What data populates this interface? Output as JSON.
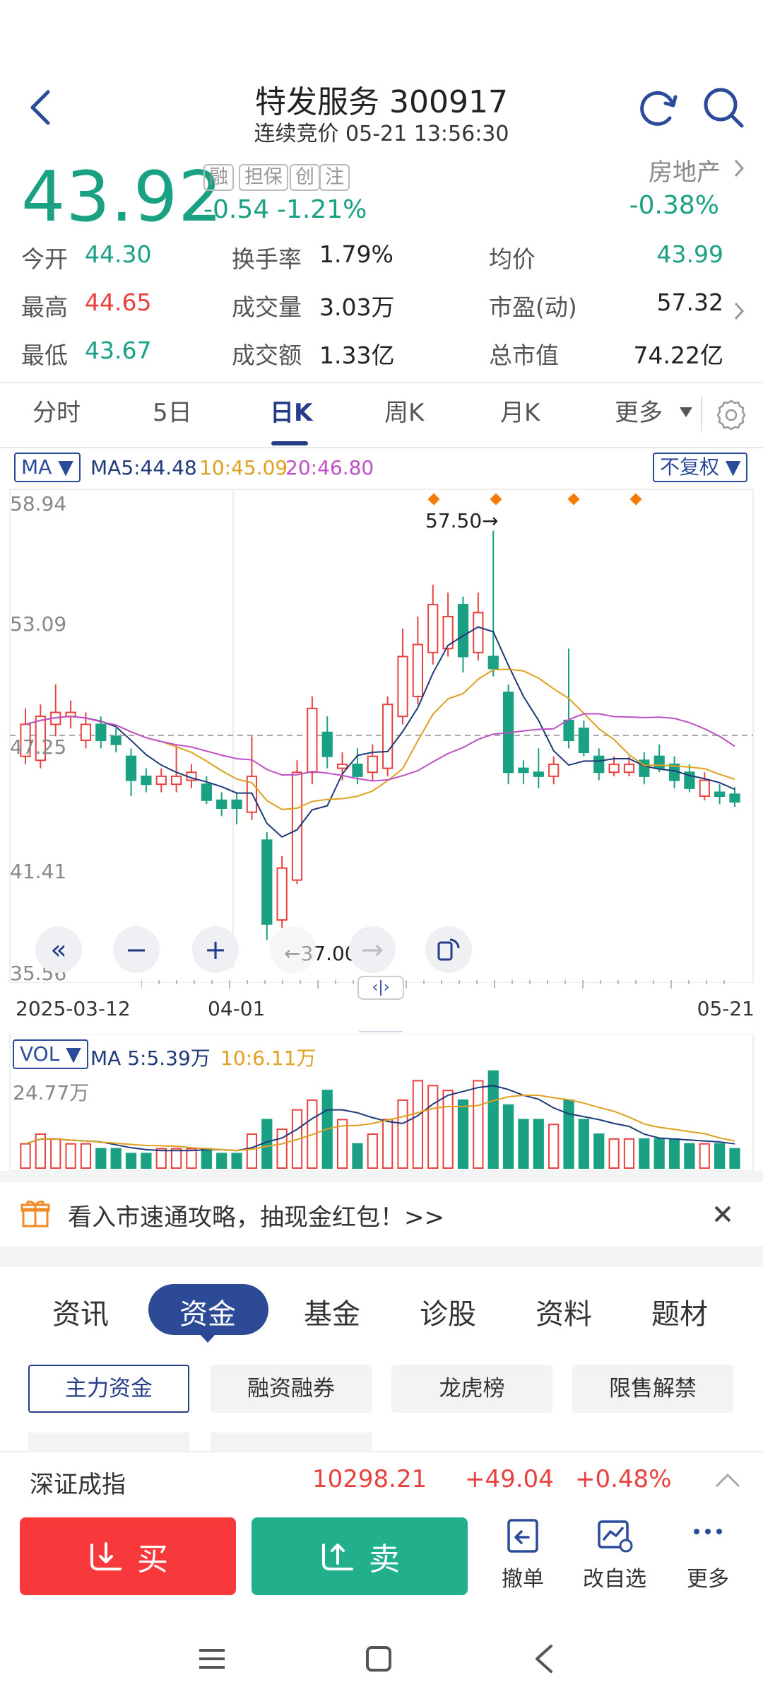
{
  "header": {
    "title": "特发服务 300917",
    "subtitle": "连续竞价 05-21 13:56:30"
  },
  "quote": {
    "price": "43.92",
    "change": "-0.54",
    "change_pct": "-1.21%",
    "tags": [
      "融",
      "担保",
      "创",
      "注"
    ],
    "sector": "房地产",
    "sector_change": "-0.38%"
  },
  "stats": {
    "open_label": "今开",
    "open": "44.30",
    "turnover_label": "换手率",
    "turnover": "1.79%",
    "avg_label": "均价",
    "avg": "43.99",
    "high_label": "最高",
    "high": "44.65",
    "volume_label": "成交量",
    "volume": "3.03万",
    "pe_label": "市盈(动)",
    "pe": "57.32",
    "low_label": "最低",
    "low": "43.67",
    "amount_label": "成交额",
    "amount": "1.33亿",
    "mcap_label": "总市值",
    "mcap": "74.22亿"
  },
  "ktabs": [
    "分时",
    "5日",
    "日K",
    "周K",
    "月K",
    "更多"
  ],
  "chart": {
    "ma_selector": "MA",
    "ma5": "MA5:44.48",
    "ma10": "10:45.09",
    "ma20": "20:46.80",
    "adjust": "不复权",
    "y_top": "58.94",
    "y_mid": "53.09",
    "y_cur": "47.25",
    "y_low": "41.41",
    "y_bottom": "35.56",
    "max_label": "57.50→",
    "min_label": "←37.00",
    "date_start": "2025-03-12",
    "date_mid": "04-01",
    "date_end": "05-21",
    "vol_selector": "VOL",
    "vol_ma5": "MA 5:5.39万",
    "vol_ma10": "10:6.11万",
    "vol_max": "24.77万",
    "colors": {
      "up": "#e8423f",
      "down": "#1aa184",
      "ma5": "#1f3a7a",
      "ma10": "#e0a020",
      "ma20": "#c050c8"
    }
  },
  "chart_data": {
    "type": "candlestick",
    "x_start": "2025-03-12",
    "x_end": "2025-05-21",
    "ylim": [
      35.56,
      58.94
    ],
    "candles": [
      {
        "o": 46.2,
        "c": 47.8,
        "h": 48.6,
        "l": 45.8
      },
      {
        "o": 46.0,
        "c": 48.2,
        "h": 48.8,
        "l": 45.6
      },
      {
        "o": 47.8,
        "c": 48.4,
        "h": 49.8,
        "l": 47.2
      },
      {
        "o": 48.2,
        "c": 48.4,
        "h": 49.0,
        "l": 47.6
      },
      {
        "o": 47.0,
        "c": 47.8,
        "h": 48.4,
        "l": 46.6
      },
      {
        "o": 47.8,
        "c": 47.0,
        "h": 48.2,
        "l": 46.6
      },
      {
        "o": 47.2,
        "c": 46.8,
        "h": 47.6,
        "l": 46.4
      },
      {
        "o": 46.2,
        "c": 45.0,
        "h": 46.6,
        "l": 44.2
      },
      {
        "o": 45.2,
        "c": 44.8,
        "h": 45.6,
        "l": 44.4
      },
      {
        "o": 44.8,
        "c": 45.2,
        "h": 45.6,
        "l": 44.4
      },
      {
        "o": 44.8,
        "c": 45.2,
        "h": 46.8,
        "l": 44.4
      },
      {
        "o": 45.0,
        "c": 45.4,
        "h": 45.8,
        "l": 44.6
      },
      {
        "o": 44.8,
        "c": 44.0,
        "h": 45.2,
        "l": 43.8
      },
      {
        "o": 44.0,
        "c": 43.6,
        "h": 44.4,
        "l": 43.2
      },
      {
        "o": 44.0,
        "c": 43.6,
        "h": 44.4,
        "l": 42.8
      },
      {
        "o": 43.4,
        "c": 45.2,
        "h": 47.2,
        "l": 43.0
      },
      {
        "o": 42.0,
        "c": 37.8,
        "h": 42.4,
        "l": 37.0
      },
      {
        "o": 38.0,
        "c": 40.6,
        "h": 41.2,
        "l": 37.6
      },
      {
        "o": 40.0,
        "c": 45.4,
        "h": 46.0,
        "l": 39.8
      },
      {
        "o": 45.4,
        "c": 48.6,
        "h": 49.2,
        "l": 44.8
      },
      {
        "o": 47.4,
        "c": 46.2,
        "h": 48.2,
        "l": 45.6
      },
      {
        "o": 45.6,
        "c": 45.8,
        "h": 46.4,
        "l": 45.0
      },
      {
        "o": 45.8,
        "c": 45.2,
        "h": 46.6,
        "l": 44.8
      },
      {
        "o": 45.4,
        "c": 46.2,
        "h": 46.8,
        "l": 45.0
      },
      {
        "o": 45.6,
        "c": 48.8,
        "h": 49.2,
        "l": 45.2
      },
      {
        "o": 48.2,
        "c": 51.2,
        "h": 52.6,
        "l": 47.8
      },
      {
        "o": 49.2,
        "c": 51.8,
        "h": 53.2,
        "l": 48.8
      },
      {
        "o": 51.4,
        "c": 53.8,
        "h": 54.8,
        "l": 50.8
      },
      {
        "o": 51.6,
        "c": 53.2,
        "h": 54.4,
        "l": 51.2
      },
      {
        "o": 53.8,
        "c": 51.2,
        "h": 54.2,
        "l": 50.4
      },
      {
        "o": 51.4,
        "c": 53.4,
        "h": 54.4,
        "l": 51.0
      },
      {
        "o": 51.2,
        "c": 50.6,
        "h": 57.5,
        "l": 50.2
      },
      {
        "o": 49.4,
        "c": 45.4,
        "h": 49.8,
        "l": 44.8
      },
      {
        "o": 45.6,
        "c": 45.4,
        "h": 46.0,
        "l": 44.8
      },
      {
        "o": 45.4,
        "c": 45.2,
        "h": 46.6,
        "l": 44.6
      },
      {
        "o": 45.2,
        "c": 45.8,
        "h": 46.2,
        "l": 44.8
      },
      {
        "o": 48.0,
        "c": 47.0,
        "h": 51.6,
        "l": 46.6
      },
      {
        "o": 47.6,
        "c": 46.4,
        "h": 48.0,
        "l": 46.2
      },
      {
        "o": 46.2,
        "c": 45.4,
        "h": 46.6,
        "l": 45.0
      },
      {
        "o": 45.4,
        "c": 45.8,
        "h": 46.2,
        "l": 45.2
      },
      {
        "o": 45.4,
        "c": 45.8,
        "h": 46.2,
        "l": 45.2
      },
      {
        "o": 46.0,
        "c": 45.2,
        "h": 46.4,
        "l": 44.8
      },
      {
        "o": 46.2,
        "c": 45.6,
        "h": 46.8,
        "l": 45.4
      },
      {
        "o": 45.8,
        "c": 45.0,
        "h": 46.2,
        "l": 44.6
      },
      {
        "o": 45.4,
        "c": 44.6,
        "h": 45.8,
        "l": 44.4
      },
      {
        "o": 44.2,
        "c": 45.0,
        "h": 45.4,
        "l": 44.0
      },
      {
        "o": 44.4,
        "c": 44.2,
        "h": 44.8,
        "l": 43.8
      },
      {
        "o": 44.3,
        "c": 43.92,
        "h": 44.65,
        "l": 43.67
      }
    ],
    "volume_ylim": [
      0,
      24.77
    ],
    "volume": [
      5,
      7,
      6,
      5,
      5,
      4,
      4,
      3,
      3,
      4,
      4,
      4,
      4,
      3,
      3,
      7,
      10,
      8,
      12,
      14,
      16,
      10,
      5,
      7,
      10,
      14,
      18,
      17,
      16,
      14,
      18,
      20,
      13,
      10,
      10,
      9,
      14,
      10,
      7,
      6,
      6,
      6,
      6,
      6,
      5,
      5,
      5,
      4
    ]
  },
  "promo": {
    "text": "看入市速通攻略，抽现金红包！>>"
  },
  "info_tabs": [
    "资讯",
    "资金",
    "基金",
    "诊股",
    "资料",
    "题材"
  ],
  "sub_buttons": [
    "主力资金",
    "融资融券",
    "龙虎榜",
    "限售解禁"
  ],
  "index_bar": {
    "name": "深证成指",
    "value": "10298.21",
    "change": "+49.04",
    "change_pct": "+0.48%"
  },
  "trade": {
    "buy": "买",
    "sell": "卖",
    "tools": [
      "撤单",
      "改自选",
      "更多"
    ]
  }
}
